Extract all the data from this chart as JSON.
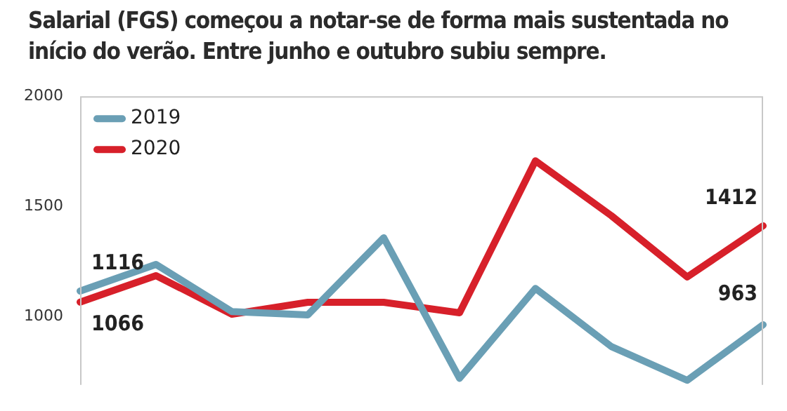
{
  "chart_data": {
    "type": "line",
    "title": "Salarial (FGS) começou a notar-se de forma mais sustentada no início do verão. Entre junho e outubro subiu sempre.",
    "categories": [
      null,
      null,
      null,
      null,
      null,
      null,
      null,
      null,
      null,
      null
    ],
    "series": [
      {
        "name": "2019",
        "color": "#6a9fb5",
        "values": [
          1116,
          1237,
          1023,
          1008,
          1358,
          720,
          1128,
          864,
          711,
          963
        ],
        "value_labels": [
          "1116",
          null,
          null,
          null,
          null,
          null,
          null,
          null,
          null,
          "963"
        ]
      },
      {
        "name": "2020",
        "color": "#d7202a",
        "values": [
          1066,
          1186,
          1011,
          1065,
          1065,
          1017,
          1707,
          1458,
          1180,
          1412
        ],
        "value_labels": [
          "1066",
          null,
          null,
          null,
          null,
          null,
          null,
          null,
          null,
          "1412"
        ]
      }
    ],
    "ylim": [
      690,
      2000
    ],
    "yticks": [
      1000,
      1500,
      2000
    ],
    "grid": false,
    "legend": "top left",
    "marker": "none",
    "line_style": "solid",
    "tick_labels": "y"
  }
}
